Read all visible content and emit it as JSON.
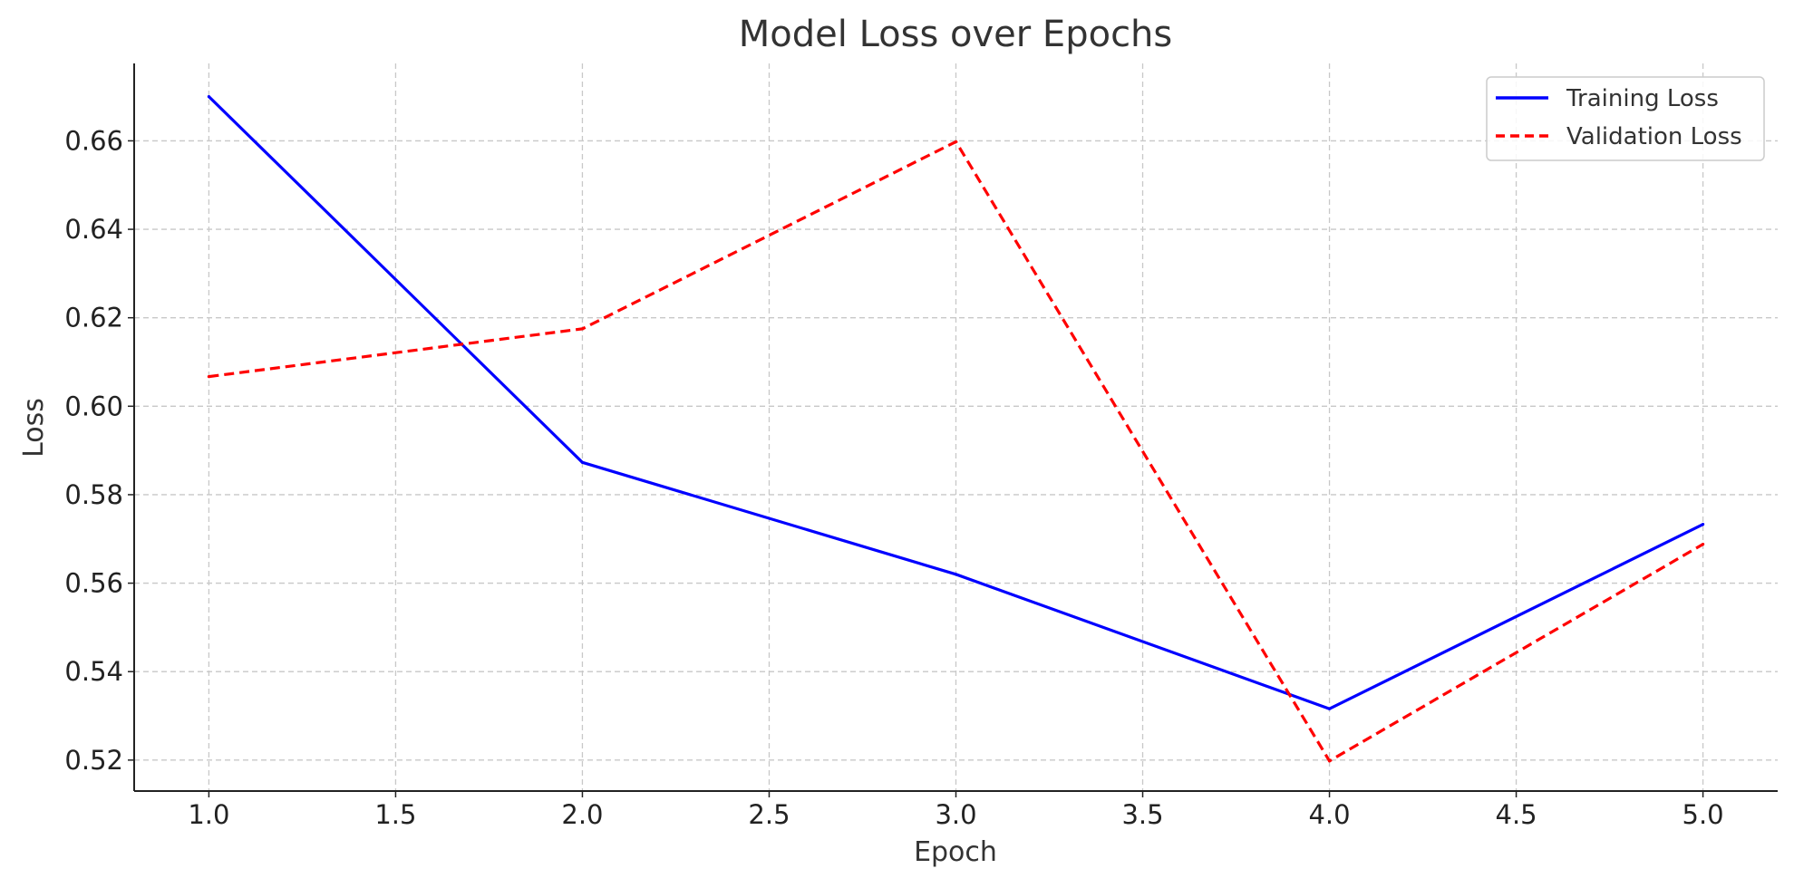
{
  "chart_data": {
    "type": "line",
    "title": "Model Loss over Epochs",
    "xlabel": "Epoch",
    "ylabel": "Loss",
    "xlim": [
      0.8,
      5.2
    ],
    "ylim": [
      0.513,
      0.6775
    ],
    "x_ticks": [
      1.0,
      1.5,
      2.0,
      2.5,
      3.0,
      3.5,
      4.0,
      4.5,
      5.0
    ],
    "x_tick_labels": [
      "1.0",
      "1.5",
      "2.0",
      "2.5",
      "3.0",
      "3.5",
      "4.0",
      "4.5",
      "5.0"
    ],
    "y_ticks": [
      0.52,
      0.54,
      0.56,
      0.58,
      0.6,
      0.62,
      0.64,
      0.66
    ],
    "y_tick_labels": [
      "0.52",
      "0.54",
      "0.56",
      "0.58",
      "0.60",
      "0.62",
      "0.64",
      "0.66"
    ],
    "grid": true,
    "legend_position": "top-right",
    "x": [
      1,
      2,
      3,
      4,
      5
    ],
    "series": [
      {
        "name": "Training Loss",
        "values": [
          0.67,
          0.5873,
          0.562,
          0.5316,
          0.5733
        ],
        "color": "#0000ff",
        "line_style": "solid"
      },
      {
        "name": "Validation Loss",
        "values": [
          0.6067,
          0.6175,
          0.6598,
          0.5198,
          0.5688
        ],
        "color": "#ff0000",
        "line_style": "dashed"
      }
    ]
  }
}
